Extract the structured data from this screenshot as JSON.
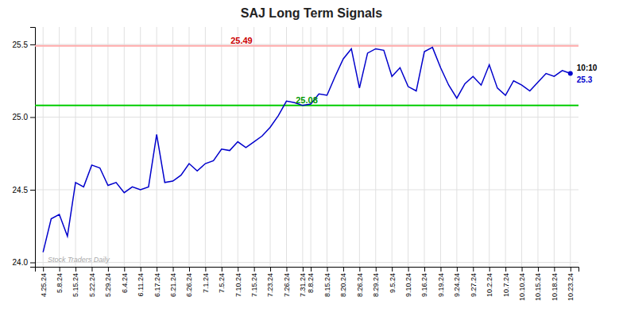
{
  "chart_data": {
    "type": "line",
    "title": "SAJ Long Term Signals",
    "watermark": "Stock Traders Daily",
    "color": "#0000cc",
    "grid": true,
    "ylim": [
      23.97,
      25.62
    ],
    "yticks": [
      {
        "value": 24.0,
        "label": "24.0"
      },
      24.5,
      {
        "value": 25.0,
        "label": "25.0"
      },
      25.5
    ],
    "categories": [
      "4.25.24",
      null,
      "5.8.24",
      null,
      "5.15.24",
      null,
      "5.22.24",
      null,
      "5.29.24",
      null,
      "6.4.24",
      null,
      "6.11.24",
      null,
      "6.17.24",
      null,
      "6.21.24",
      null,
      "6.26.24",
      null,
      "7.1.24",
      null,
      "7.5.24",
      null,
      "7.10.24",
      null,
      "7.15.24",
      null,
      "7.23.24",
      null,
      "7.26.24",
      null,
      "7.31.24",
      "8.8.24",
      null,
      "8.15.24",
      null,
      "8.20.24",
      null,
      "8.26.24",
      null,
      "8.29.24",
      null,
      "9.5.24",
      null,
      "9.10.24",
      null,
      "9.16.24",
      null,
      "9.19.24",
      null,
      "9.24.24",
      null,
      "9.27.24",
      null,
      "10.2.24",
      null,
      "10.7.24",
      null,
      "10.10.24",
      null,
      "10.15.24",
      null,
      "10.18.24",
      null,
      "10.23.24"
    ],
    "values": [
      24.07,
      24.3,
      24.33,
      24.18,
      24.55,
      24.52,
      24.67,
      24.65,
      24.53,
      24.55,
      24.48,
      24.52,
      24.5,
      24.52,
      24.88,
      24.55,
      24.56,
      24.6,
      24.68,
      24.63,
      24.68,
      24.7,
      24.78,
      24.77,
      24.83,
      24.79,
      24.83,
      24.87,
      24.93,
      25.01,
      25.11,
      25.1,
      25.08,
      25.09,
      25.16,
      25.15,
      25.28,
      25.4,
      25.47,
      25.2,
      25.44,
      25.47,
      25.46,
      25.28,
      25.34,
      25.21,
      25.18,
      25.45,
      25.48,
      25.34,
      25.22,
      25.13,
      25.23,
      25.28,
      25.22,
      25.36,
      25.2,
      25.15,
      25.25,
      25.22,
      25.18,
      25.24,
      25.3,
      25.28,
      25.32,
      25.3
    ],
    "reference_lines": [
      {
        "y": 25.49,
        "label": "25.49",
        "color": "#ffaaaa",
        "label_color": "#cc0000"
      },
      {
        "y": 25.08,
        "label": "25.08",
        "color": "#00cc00",
        "label_color": "#009900"
      }
    ],
    "annotations": [
      {
        "text": "10:10",
        "color": "#000000"
      },
      {
        "text": "25.3",
        "y": 25.3,
        "color": "#0000cc"
      }
    ]
  }
}
